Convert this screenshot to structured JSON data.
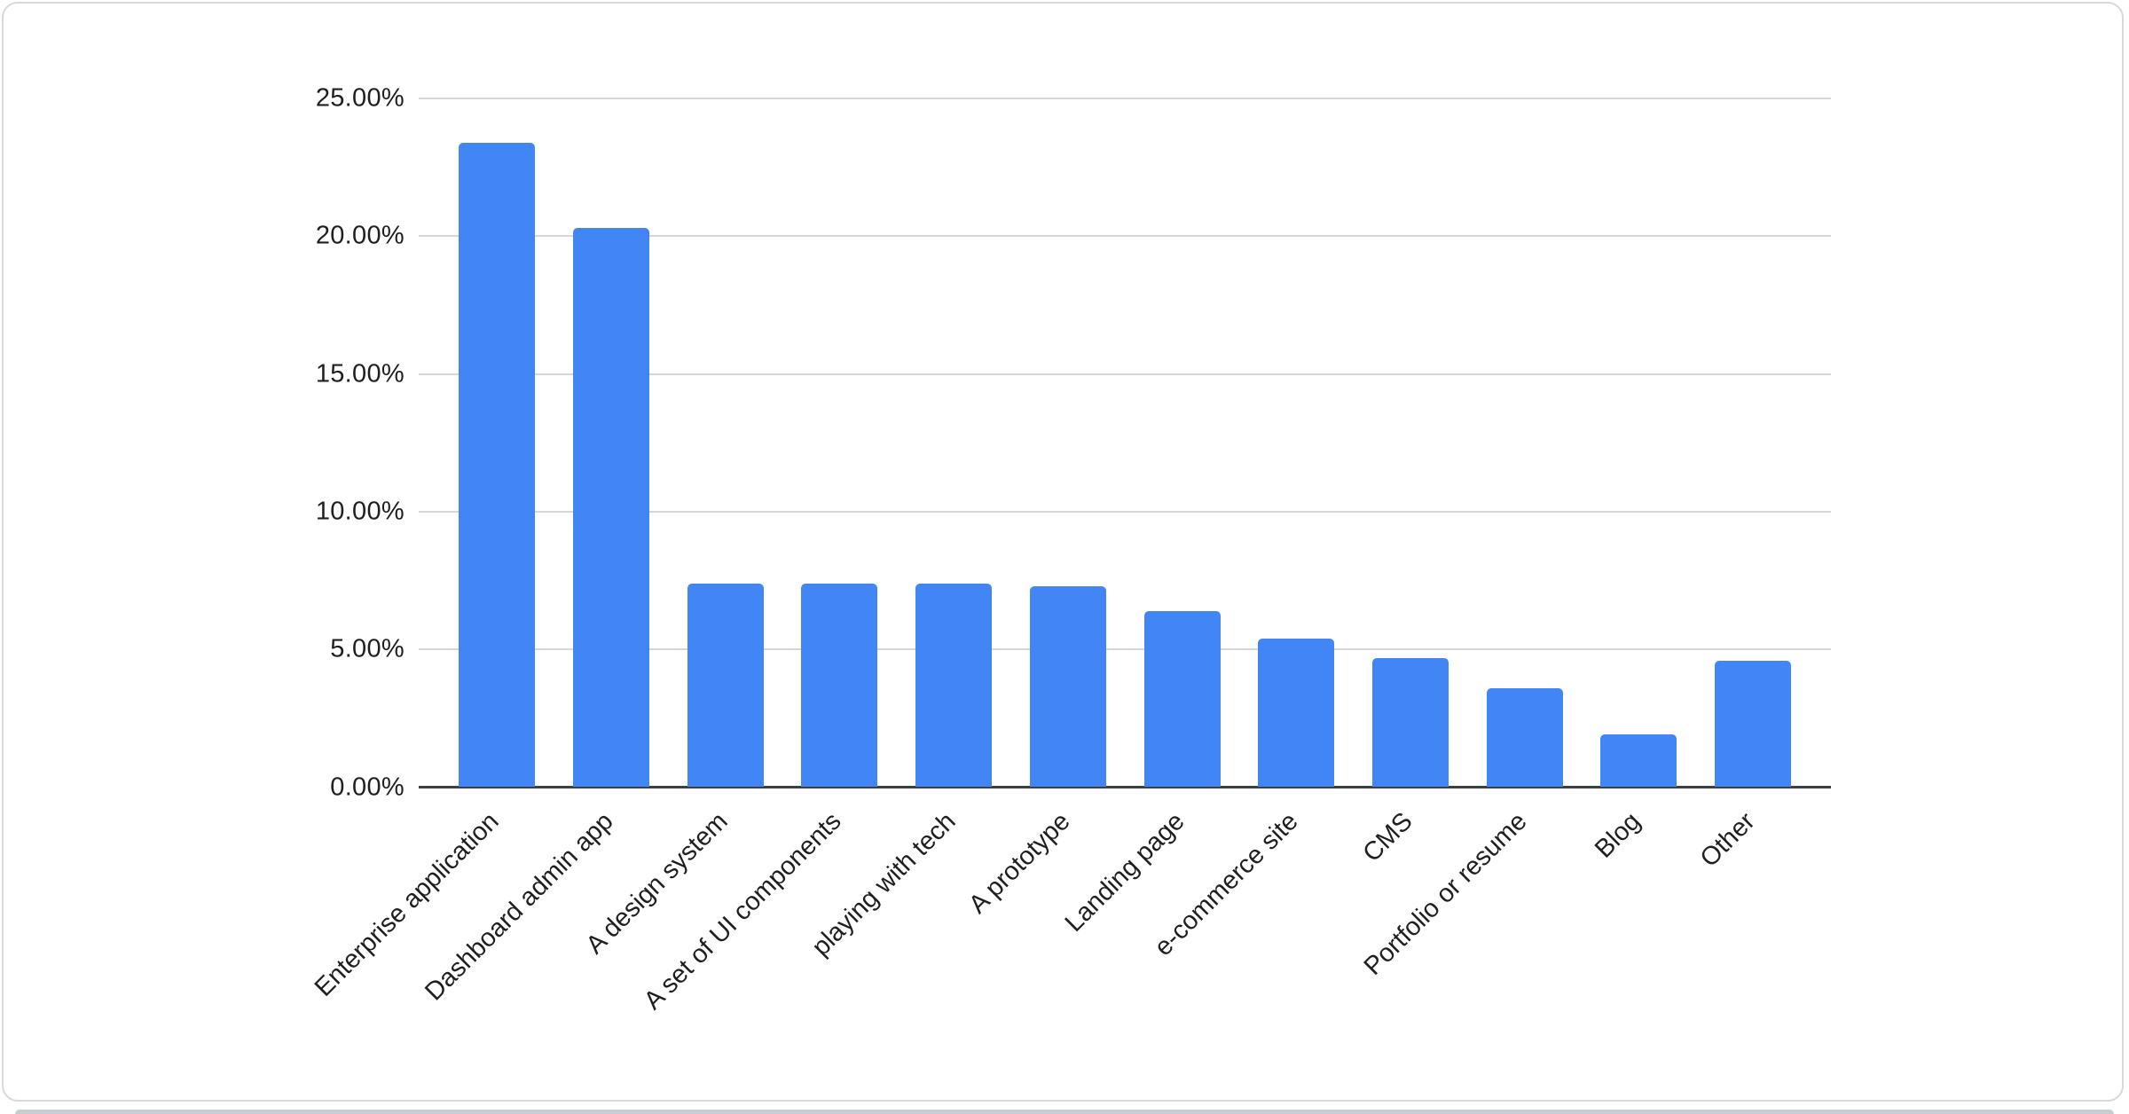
{
  "page": {
    "background_color": "#ffffff"
  },
  "card": {
    "background_color": "#ffffff",
    "border_color": "#d7d9dd"
  },
  "next_card_edge_color": "#c9ccd2",
  "chart_data": {
    "type": "bar",
    "title": "",
    "xlabel": "",
    "ylabel": "",
    "categories": [
      "Enterprise application",
      "Dashboard admin app",
      "A design system",
      "A set of UI components",
      "playing with tech",
      "A prototype",
      "Landing page",
      "e-commerce site",
      "CMS",
      "Portfolio or resume",
      "Blog",
      "Other"
    ],
    "values": [
      23.4,
      20.3,
      7.4,
      7.4,
      7.4,
      7.3,
      6.4,
      5.4,
      4.7,
      3.6,
      1.9,
      4.6
    ],
    "unit": "%",
    "ylim": [
      0,
      25
    ],
    "y_tick_values": [
      25,
      20,
      15,
      10,
      5,
      0
    ],
    "y_tick_labels": [
      "25.00%",
      "20.00%",
      "15.00%",
      "10.00%",
      "5.00%",
      "0.00%"
    ],
    "grid": true,
    "legend_position": "none",
    "bar_color": "#4285f4",
    "gridline_color": "#d6d6d6",
    "axis_line_color": "#3c4043",
    "label_color": "#1f1f1f",
    "x_label_rotation_deg": -45
  }
}
